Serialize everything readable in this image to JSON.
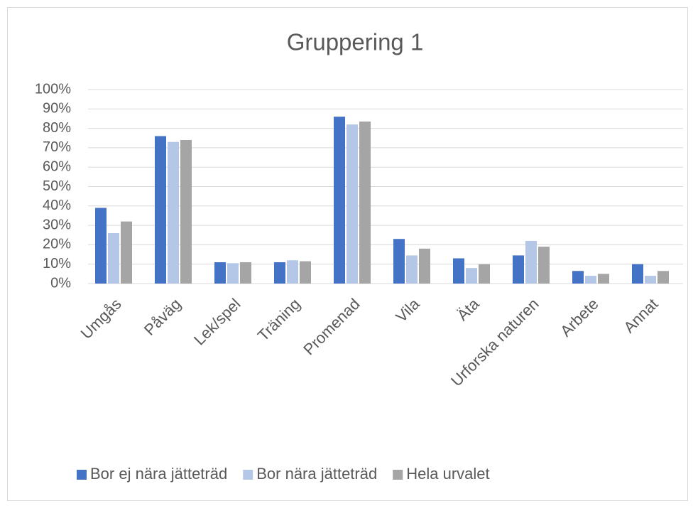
{
  "chart_data": {
    "type": "bar",
    "title": "Gruppering 1",
    "categories": [
      "Umgås",
      "Påväg",
      "Lek/spel",
      "Träning",
      "Promenad",
      "Vila",
      "Äta",
      "Urforska naturen",
      "Arbete",
      "Annat"
    ],
    "series": [
      {
        "name": "Bor ej nära jätteträd",
        "color": "#4472c4",
        "values": [
          39,
          76,
          11,
          11,
          86,
          23,
          13,
          14.5,
          6.5,
          10
        ]
      },
      {
        "name": "Bor nära jätteträd",
        "color": "#b4c7e7",
        "values": [
          26,
          73,
          10.5,
          12,
          82,
          14.5,
          8,
          22,
          4,
          4
        ]
      },
      {
        "name": "Hela urvalet",
        "color": "#a5a5a5",
        "values": [
          32,
          74,
          11,
          11.5,
          83.5,
          18,
          10,
          19,
          5,
          6.5
        ]
      }
    ],
    "ylim": [
      0,
      100
    ],
    "yticks": [
      {
        "value": 0,
        "label": "0%"
      },
      {
        "value": 10,
        "label": "10%"
      },
      {
        "value": 20,
        "label": "20%"
      },
      {
        "value": 30,
        "label": "30%"
      },
      {
        "value": 40,
        "label": "40%"
      },
      {
        "value": 50,
        "label": "50%"
      },
      {
        "value": 60,
        "label": "60%"
      },
      {
        "value": 70,
        "label": "70%"
      },
      {
        "value": 80,
        "label": "80%"
      },
      {
        "value": 90,
        "label": "90%"
      },
      {
        "value": 100,
        "label": "100%"
      }
    ],
    "grid": true,
    "legend": "bottom"
  }
}
